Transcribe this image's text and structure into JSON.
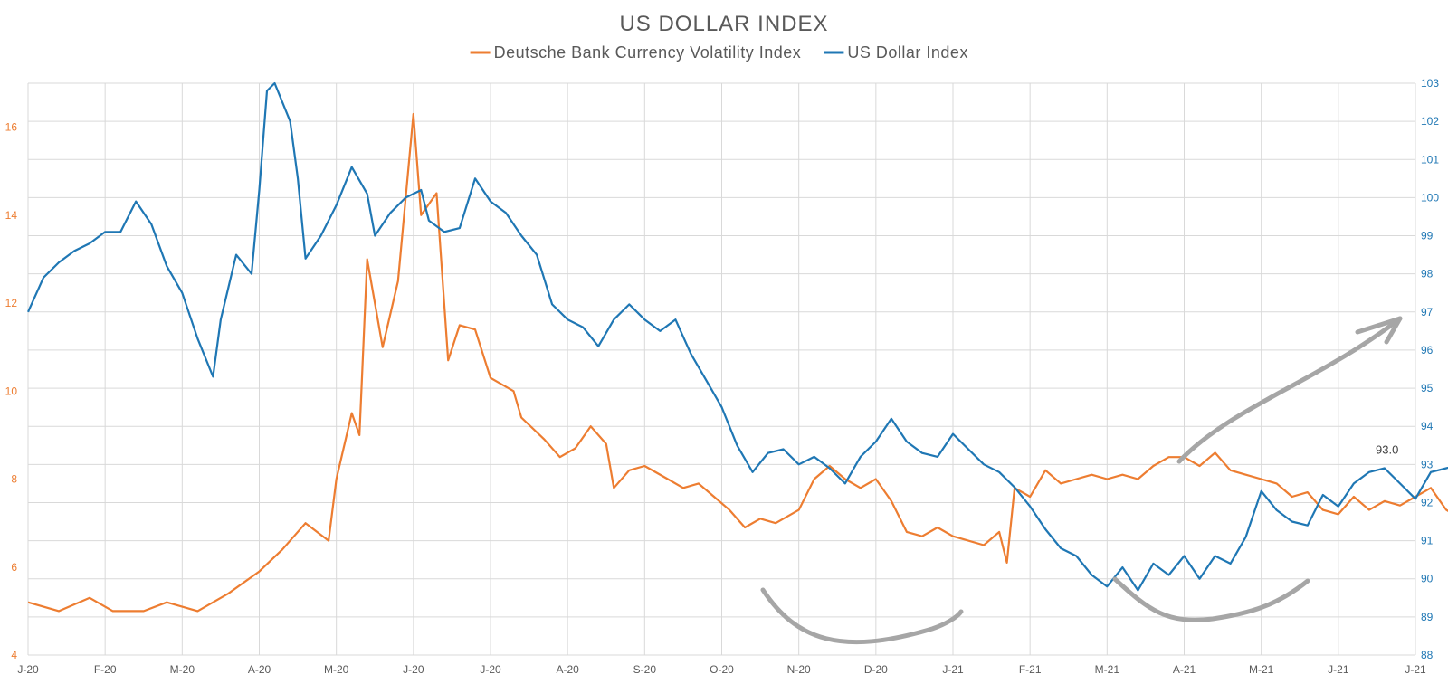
{
  "chart_data": {
    "type": "line",
    "title": "US DOLLAR INDEX",
    "legend_position": "top-center",
    "grid": true,
    "x_tick_labels": [
      "J-20",
      "F-20",
      "M-20",
      "A-20",
      "M-20",
      "J-20",
      "J-20",
      "A-20",
      "S-20",
      "O-20",
      "N-20",
      "D-20",
      "J-21",
      "F-21",
      "M-21",
      "A-21",
      "M-21",
      "J-21",
      "J-21"
    ],
    "y_left": {
      "ylim": [
        4,
        17
      ],
      "ticks": [
        "4",
        "6",
        "8",
        "10",
        "12",
        "14",
        "16"
      ],
      "color": "#ed7d31"
    },
    "y_right": {
      "ylim": [
        88,
        103
      ],
      "ticks": [
        "88",
        "89",
        "90",
        "91",
        "92",
        "93",
        "94",
        "95",
        "96",
        "97",
        "98",
        "99",
        "100",
        "101",
        "102",
        "103"
      ],
      "color": "#1f77b4"
    },
    "series": [
      {
        "name": "Deutsche Bank Currency Volatility Index",
        "color": "#ed7d31",
        "axis": "left",
        "points": [
          [
            0.0,
            5.2
          ],
          [
            0.4,
            5.0
          ],
          [
            0.8,
            5.3
          ],
          [
            1.1,
            5.0
          ],
          [
            1.5,
            5.0
          ],
          [
            1.8,
            5.2
          ],
          [
            2.2,
            5.0
          ],
          [
            2.6,
            5.4
          ],
          [
            3.0,
            5.9
          ],
          [
            3.3,
            6.4
          ],
          [
            3.6,
            7.0
          ],
          [
            3.9,
            6.6
          ],
          [
            4.0,
            8.0
          ],
          [
            4.2,
            9.5
          ],
          [
            4.3,
            9.0
          ],
          [
            4.4,
            13.0
          ],
          [
            4.6,
            11.0
          ],
          [
            4.8,
            12.5
          ],
          [
            5.0,
            16.3
          ],
          [
            5.1,
            14.0
          ],
          [
            5.3,
            14.5
          ],
          [
            5.45,
            10.7
          ],
          [
            5.6,
            11.5
          ],
          [
            5.8,
            11.4
          ],
          [
            6.0,
            10.3
          ],
          [
            6.3,
            10.0
          ],
          [
            6.4,
            9.4
          ],
          [
            6.7,
            8.9
          ],
          [
            6.9,
            8.5
          ],
          [
            7.1,
            8.7
          ],
          [
            7.3,
            9.2
          ],
          [
            7.5,
            8.8
          ],
          [
            7.6,
            7.8
          ],
          [
            7.8,
            8.2
          ],
          [
            8.0,
            8.3
          ],
          [
            8.3,
            8.0
          ],
          [
            8.5,
            7.8
          ],
          [
            8.7,
            7.9
          ],
          [
            8.9,
            7.6
          ],
          [
            9.1,
            7.3
          ],
          [
            9.3,
            6.9
          ],
          [
            9.5,
            7.1
          ],
          [
            9.7,
            7.0
          ],
          [
            10.0,
            7.3
          ],
          [
            10.2,
            8.0
          ],
          [
            10.4,
            8.3
          ],
          [
            10.6,
            8.0
          ],
          [
            10.8,
            7.8
          ],
          [
            11.0,
            8.0
          ],
          [
            11.2,
            7.5
          ],
          [
            11.4,
            6.8
          ],
          [
            11.6,
            6.7
          ],
          [
            11.8,
            6.9
          ],
          [
            12.0,
            6.7
          ],
          [
            12.2,
            6.6
          ],
          [
            12.4,
            6.5
          ],
          [
            12.6,
            6.8
          ],
          [
            12.7,
            6.1
          ],
          [
            12.8,
            7.8
          ],
          [
            13.0,
            7.6
          ],
          [
            13.2,
            8.2
          ],
          [
            13.4,
            7.9
          ],
          [
            13.6,
            8.0
          ],
          [
            13.8,
            8.1
          ],
          [
            14.0,
            8.0
          ],
          [
            14.2,
            8.1
          ],
          [
            14.4,
            8.0
          ],
          [
            14.6,
            8.3
          ],
          [
            14.8,
            8.5
          ],
          [
            15.0,
            8.5
          ],
          [
            15.2,
            8.3
          ],
          [
            15.4,
            8.6
          ],
          [
            15.6,
            8.2
          ],
          [
            15.8,
            8.1
          ],
          [
            16.0,
            8.0
          ],
          [
            16.2,
            7.9
          ],
          [
            16.4,
            7.6
          ],
          [
            16.6,
            7.7
          ],
          [
            16.8,
            7.3
          ],
          [
            17.0,
            7.2
          ],
          [
            17.2,
            7.6
          ],
          [
            17.4,
            7.3
          ],
          [
            17.6,
            7.5
          ],
          [
            17.8,
            7.4
          ],
          [
            18.0,
            7.6
          ],
          [
            18.2,
            7.8
          ],
          [
            18.4,
            7.3
          ],
          [
            18.6,
            7.1
          ]
        ]
      },
      {
        "name": "US Dollar Index",
        "color": "#1f77b4",
        "axis": "right",
        "points": [
          [
            0.0,
            97.0
          ],
          [
            0.2,
            97.9
          ],
          [
            0.4,
            98.3
          ],
          [
            0.6,
            98.6
          ],
          [
            0.8,
            98.8
          ],
          [
            1.0,
            99.1
          ],
          [
            1.2,
            99.1
          ],
          [
            1.4,
            99.9
          ],
          [
            1.6,
            99.3
          ],
          [
            1.8,
            98.2
          ],
          [
            2.0,
            97.5
          ],
          [
            2.2,
            96.3
          ],
          [
            2.4,
            95.3
          ],
          [
            2.5,
            96.8
          ],
          [
            2.7,
            98.5
          ],
          [
            2.9,
            98.0
          ],
          [
            3.0,
            100.2
          ],
          [
            3.1,
            102.8
          ],
          [
            3.2,
            103.0
          ],
          [
            3.4,
            102.0
          ],
          [
            3.5,
            100.5
          ],
          [
            3.6,
            98.4
          ],
          [
            3.8,
            99.0
          ],
          [
            4.0,
            99.8
          ],
          [
            4.2,
            100.8
          ],
          [
            4.4,
            100.1
          ],
          [
            4.5,
            99.0
          ],
          [
            4.7,
            99.6
          ],
          [
            4.9,
            100.0
          ],
          [
            5.1,
            100.2
          ],
          [
            5.2,
            99.4
          ],
          [
            5.4,
            99.1
          ],
          [
            5.6,
            99.2
          ],
          [
            5.8,
            100.5
          ],
          [
            6.0,
            99.9
          ],
          [
            6.2,
            99.6
          ],
          [
            6.4,
            99.0
          ],
          [
            6.6,
            98.5
          ],
          [
            6.8,
            97.2
          ],
          [
            7.0,
            96.8
          ],
          [
            7.2,
            96.6
          ],
          [
            7.4,
            96.1
          ],
          [
            7.6,
            96.8
          ],
          [
            7.8,
            97.2
          ],
          [
            8.0,
            96.8
          ],
          [
            8.2,
            96.5
          ],
          [
            8.4,
            96.8
          ],
          [
            8.6,
            95.9
          ],
          [
            8.8,
            95.2
          ],
          [
            9.0,
            94.5
          ],
          [
            9.2,
            93.5
          ],
          [
            9.4,
            92.8
          ],
          [
            9.6,
            93.3
          ],
          [
            9.8,
            93.4
          ],
          [
            10.0,
            93.0
          ],
          [
            10.2,
            93.2
          ],
          [
            10.4,
            92.9
          ],
          [
            10.6,
            92.5
          ],
          [
            10.8,
            93.2
          ],
          [
            11.0,
            93.6
          ],
          [
            11.2,
            94.2
          ],
          [
            11.4,
            93.6
          ],
          [
            11.6,
            93.3
          ],
          [
            11.8,
            93.2
          ],
          [
            12.0,
            93.8
          ],
          [
            12.2,
            93.4
          ],
          [
            12.4,
            93.0
          ],
          [
            12.6,
            92.8
          ],
          [
            12.8,
            92.4
          ],
          [
            13.0,
            91.9
          ],
          [
            13.2,
            91.3
          ],
          [
            13.4,
            90.8
          ],
          [
            13.6,
            90.6
          ],
          [
            13.8,
            90.1
          ],
          [
            14.0,
            89.8
          ],
          [
            14.2,
            90.3
          ],
          [
            14.4,
            89.7
          ],
          [
            14.6,
            90.4
          ],
          [
            14.8,
            90.1
          ],
          [
            15.0,
            90.6
          ],
          [
            15.2,
            90.0
          ],
          [
            15.4,
            90.6
          ],
          [
            15.6,
            90.4
          ],
          [
            15.8,
            91.1
          ],
          [
            16.0,
            92.3
          ],
          [
            16.2,
            91.8
          ],
          [
            16.4,
            91.5
          ],
          [
            16.6,
            91.4
          ],
          [
            16.8,
            92.2
          ],
          [
            17.0,
            91.9
          ],
          [
            17.2,
            92.5
          ],
          [
            17.4,
            92.8
          ],
          [
            17.6,
            92.9
          ],
          [
            17.8,
            92.5
          ],
          [
            18.0,
            92.1
          ],
          [
            18.2,
            92.8
          ],
          [
            18.4,
            92.9
          ],
          [
            18.6,
            93.0
          ]
        ]
      }
    ],
    "end_label": "93.0"
  }
}
